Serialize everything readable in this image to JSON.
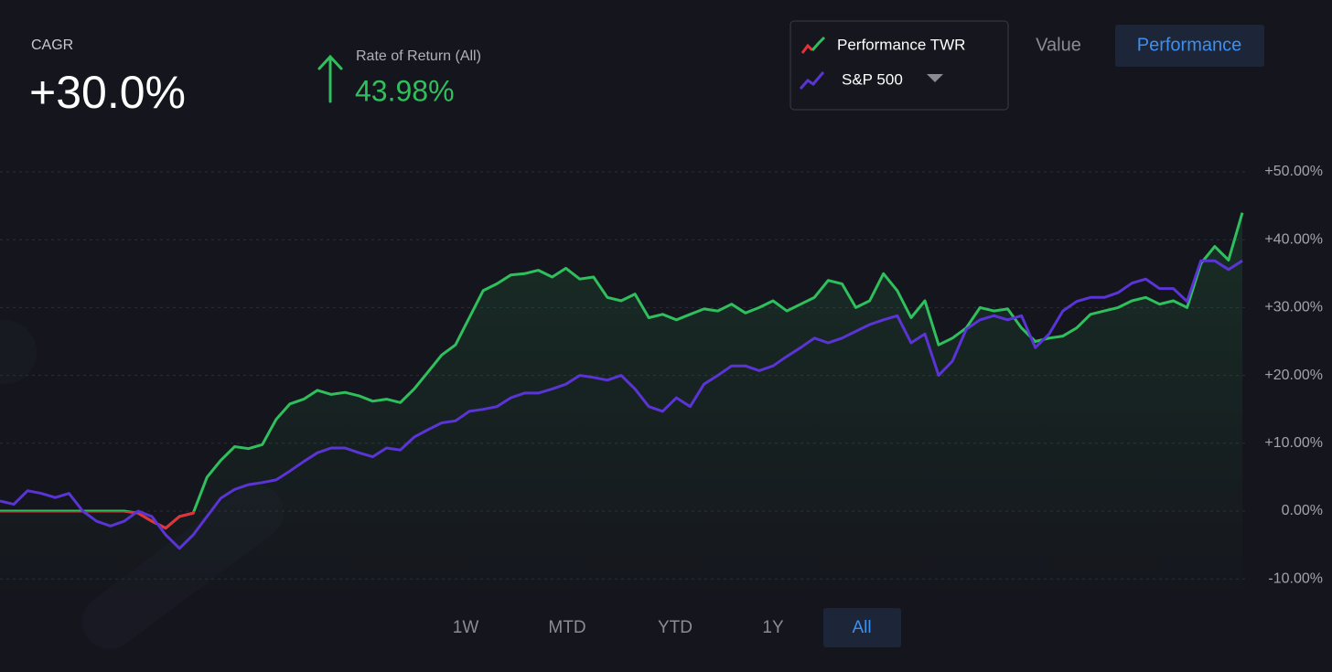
{
  "header": {
    "cagr_label": "CAGR",
    "cagr_value": "+30.0%",
    "return_label": "Rate of Return (All)",
    "return_value": "43.98%"
  },
  "view_tabs": [
    "Value",
    "Performance"
  ],
  "range_tabs": [
    "1W",
    "MTD",
    "YTD",
    "1Y",
    "All"
  ],
  "chart_data": {
    "type": "line",
    "series": [
      {
        "name": "Performance TWR",
        "color": "#2fbf5c",
        "values": [
          0,
          0,
          0,
          0,
          0,
          0,
          0,
          0,
          0,
          0,
          -0.3,
          -1.5,
          -2.5,
          -0.8,
          -0.3,
          5.0,
          7.5,
          9.5,
          9.2,
          9.8,
          13.5,
          15.8,
          16.5,
          17.8,
          17.2,
          17.5,
          17.0,
          16.2,
          16.5,
          16.0,
          18.0,
          20.5,
          23.0,
          24.5,
          28.5,
          32.5,
          33.5,
          34.8,
          35.0,
          35.5,
          34.5,
          35.8,
          34.2,
          34.5,
          31.5,
          31.0,
          32.0,
          28.5,
          29.0,
          28.2,
          29.0,
          29.8,
          29.5,
          30.5,
          29.2,
          30.0,
          31.0,
          29.5,
          30.5,
          31.5,
          34.0,
          33.5,
          30.0,
          31.0,
          35.0,
          32.5,
          28.5,
          31.0,
          24.5,
          25.5,
          27.0,
          30.0,
          29.5,
          29.8,
          27.0,
          25.0,
          25.5,
          25.8,
          27.0,
          29.0,
          29.5,
          30.0,
          31.0,
          31.5,
          30.5,
          31.0,
          30.0,
          36.5,
          39.0,
          37.0,
          43.98
        ]
      },
      {
        "name": "S&P 500",
        "color": "#5a34d4",
        "values": [
          1.5,
          1.0,
          3.0,
          2.6,
          2.0,
          2.6,
          0,
          -1.5,
          -2.2,
          -1.5,
          0,
          -0.8,
          -3.5,
          -5.5,
          -3.5,
          -0.8,
          1.9,
          3.2,
          3.9,
          4.2,
          4.6,
          5.9,
          7.3,
          8.6,
          9.3,
          9.3,
          8.6,
          8.0,
          9.3,
          9.0,
          10.9,
          12.0,
          13.0,
          13.3,
          14.7,
          15.0,
          15.4,
          16.7,
          17.4,
          17.4,
          18.0,
          18.7,
          20.0,
          19.7,
          19.3,
          20.0,
          18.0,
          15.4,
          14.7,
          16.7,
          15.4,
          18.7,
          20.0,
          21.4,
          21.4,
          20.7,
          21.4,
          22.8,
          24.1,
          25.5,
          24.8,
          25.5,
          26.5,
          27.5,
          28.2,
          28.8,
          24.8,
          26.1,
          20.0,
          22.1,
          26.8,
          28.2,
          28.8,
          28.2,
          28.8,
          24.1,
          26.1,
          29.5,
          30.9,
          31.5,
          31.5,
          32.2,
          33.6,
          34.2,
          32.8,
          32.8,
          30.9,
          36.9,
          36.9,
          35.6,
          36.9
        ]
      }
    ],
    "negative_color": "#e5313c",
    "ylim": [
      -13,
      54
    ],
    "yticks": [
      {
        "value": -10,
        "label": "-10.00%"
      },
      {
        "value": 0,
        "label": "0.00%"
      },
      {
        "value": 10,
        "label": "+10.00%"
      },
      {
        "value": 20,
        "label": "+20.00%"
      },
      {
        "value": 30,
        "label": "+30.00%"
      },
      {
        "value": 40,
        "label": "+40.00%"
      },
      {
        "value": 50,
        "label": "+50.00%"
      }
    ],
    "grid": true
  }
}
